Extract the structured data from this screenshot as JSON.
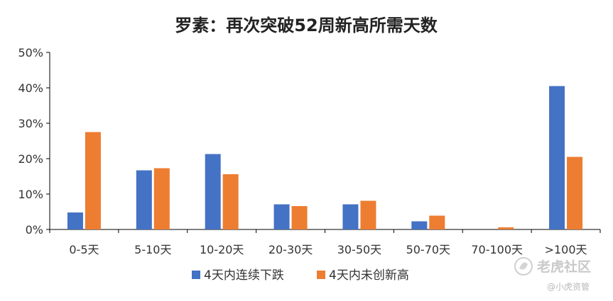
{
  "chart_data": {
    "type": "bar",
    "title": "罗素：再次突破52周新高所需天数",
    "categories": [
      "0-5天",
      "5-10天",
      "10-20天",
      "20-30天",
      "30-50天",
      "50-70天",
      "70-100天",
      ">100天"
    ],
    "series": [
      {
        "name": "4天内连续下跌",
        "color": "#4472C4",
        "values": [
          4.8,
          16.7,
          21.3,
          7.1,
          7.1,
          2.3,
          0,
          40.5
        ]
      },
      {
        "name": "4天内未创新高",
        "color": "#ED7D31",
        "values": [
          27.5,
          17.3,
          15.6,
          6.6,
          8.1,
          3.9,
          0.6,
          20.5
        ]
      }
    ],
    "yticks": [
      "0%",
      "10%",
      "20%",
      "30%",
      "40%",
      "50%"
    ],
    "ylim": [
      0,
      50
    ],
    "grid": false,
    "legend_position": "bottom"
  },
  "watermark": {
    "brand": "老虎社区",
    "author": "@小虎资管"
  }
}
